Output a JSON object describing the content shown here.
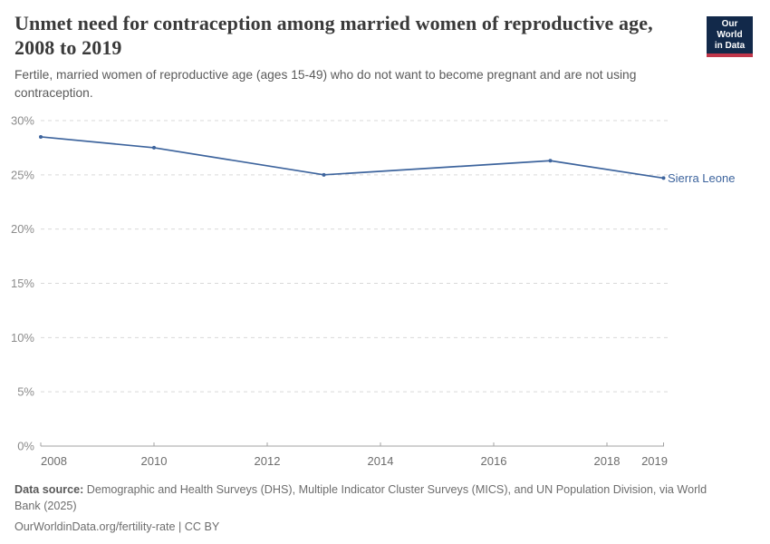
{
  "header": {
    "title": "Unmet need for contraception among married women of reproductive age, 2008 to 2019",
    "subtitle": "Fertile, married women of reproductive age (ages 15-49) who do not want to become pregnant and are not using contraception.",
    "logo": {
      "line1": "Our World",
      "line2": "in Data",
      "bg_color": "#12294a",
      "accent_color": "#c0364a"
    }
  },
  "chart_data": {
    "type": "line",
    "title": "Unmet need for contraception among married women of reproductive age, 2008 to 2019",
    "x": [
      2008,
      2010,
      2013,
      2017,
      2019
    ],
    "series": [
      {
        "name": "Sierra Leone",
        "color": "#3d649d",
        "values": [
          28.5,
          27.5,
          25.0,
          26.3,
          24.7
        ]
      }
    ],
    "xlim": [
      2008,
      2019
    ],
    "ylim": [
      0,
      30
    ],
    "yticks": [
      {
        "value": 0,
        "label": "0%"
      },
      {
        "value": 5,
        "label": "5%"
      },
      {
        "value": 10,
        "label": "10%"
      },
      {
        "value": 15,
        "label": "15%"
      },
      {
        "value": 20,
        "label": "20%"
      },
      {
        "value": 25,
        "label": "25%"
      },
      {
        "value": 30,
        "label": "30%"
      }
    ],
    "xticks": [
      {
        "value": 2008,
        "label": "2008"
      },
      {
        "value": 2010,
        "label": "2010"
      },
      {
        "value": 2012,
        "label": "2012"
      },
      {
        "value": 2014,
        "label": "2014"
      },
      {
        "value": 2016,
        "label": "2016"
      },
      {
        "value": 2018,
        "label": "2018"
      },
      {
        "value": 2019,
        "label": "2019"
      }
    ],
    "grid": "horizontal-dashed",
    "legend_position": "line-end-label",
    "colors": {
      "gridline": "#d9d9d9",
      "axis": "#a3a3a3",
      "ytick_label": "#8c8c8c",
      "xtick_label": "#6d6d6d"
    }
  },
  "footer": {
    "datasource_label": "Data source:",
    "datasource_text": " Demographic and Health Surveys (DHS), Multiple Indicator Cluster Surveys (MICS), and UN Population Division, via World Bank (2025)",
    "license_text": "OurWorldinData.org/fertility-rate | CC BY"
  }
}
